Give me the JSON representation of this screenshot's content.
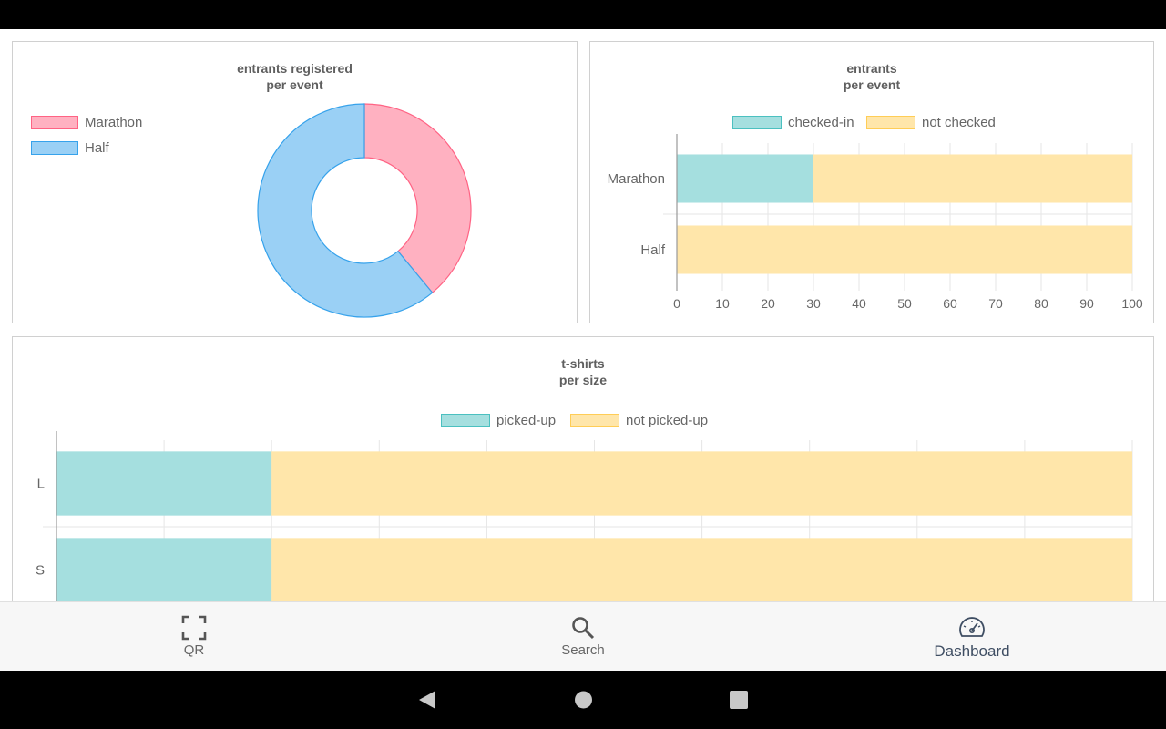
{
  "nav": {
    "items": [
      {
        "label": "QR",
        "icon": "qr-scan-icon",
        "active": false
      },
      {
        "label": "Search",
        "icon": "search-icon",
        "active": false
      },
      {
        "label": "Dashboard",
        "icon": "speedometer-icon",
        "active": true
      }
    ]
  },
  "colors": {
    "pink_fill": "#ffb1c1",
    "pink_border": "#ff6384",
    "blue_fill": "#9ad0f5",
    "blue_border": "#36a2eb",
    "teal_fill": "#a5dfdf",
    "teal_border": "#4bc0c0",
    "yellow_fill": "#ffe6aa",
    "yellow_border": "#ffcd56"
  },
  "chart_data": [
    {
      "type": "pie",
      "title": [
        "entrants registered",
        "per event"
      ],
      "labels": [
        "Marathon",
        "Half"
      ],
      "values": [
        39,
        61
      ],
      "legend_position": "left"
    },
    {
      "type": "bar",
      "orientation": "horizontal",
      "stacked": true,
      "title": [
        "entrants",
        "per event"
      ],
      "categories": [
        "Marathon",
        "Half"
      ],
      "series": [
        {
          "name": "checked-in",
          "values": [
            30,
            0
          ]
        },
        {
          "name": "not checked",
          "values": [
            70,
            100
          ]
        }
      ],
      "xlim": [
        0,
        100
      ],
      "xticks": [
        0,
        10,
        20,
        30,
        40,
        50,
        60,
        70,
        80,
        90,
        100
      ],
      "grid": true,
      "legend_position": "top"
    },
    {
      "type": "bar",
      "orientation": "horizontal",
      "stacked": true,
      "title": [
        "t-shirts",
        "per size"
      ],
      "categories": [
        "L",
        "S"
      ],
      "series": [
        {
          "name": "picked-up",
          "values": [
            2,
            2
          ]
        },
        {
          "name": "not picked-up",
          "values": [
            8,
            8
          ]
        }
      ],
      "xlim": [
        0,
        10
      ],
      "grid": true,
      "legend_position": "top"
    }
  ]
}
